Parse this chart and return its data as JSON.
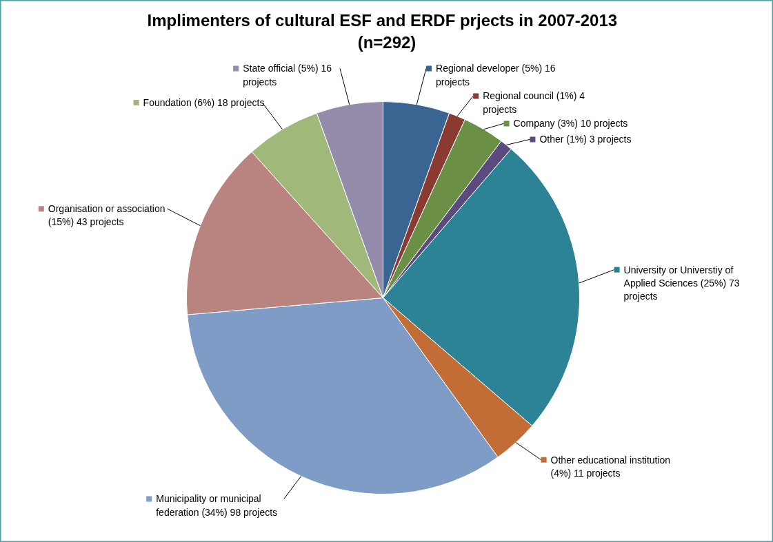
{
  "chart_data": {
    "type": "pie",
    "title": "Implimenters  of cultural  ESF and ERDF prjects in 2007-2013 (n=292)",
    "categories": [
      "Regional developer",
      "Regional council",
      "Company",
      "Other",
      "University or Universtiy of Applied Sciences",
      "Other educational institution",
      "Municipality or municipal federation",
      "Organisation or association",
      "Foundation",
      "State official"
    ],
    "values": [
      16,
      4,
      10,
      3,
      73,
      11,
      98,
      43,
      18,
      16
    ],
    "value_labels": [
      "(5%) 16 projects",
      "(1%) 4 projects",
      "(3%) 10 projects",
      "(1%) 3 projects",
      "(25%) 73 projects",
      "(4%) 11 projects",
      "(34%)  98 projects",
      "(15%) 43 projects",
      "(6%) 18 projects",
      "(5%) 16 projects"
    ],
    "colors": [
      "#3a6592",
      "#8b3a32",
      "#6a8f45",
      "#5a4a7e",
      "#2d8396",
      "#c26c36",
      "#7f9cc6",
      "#b9837f",
      "#a0b87a",
      "#958cab"
    ],
    "legend": "right"
  }
}
